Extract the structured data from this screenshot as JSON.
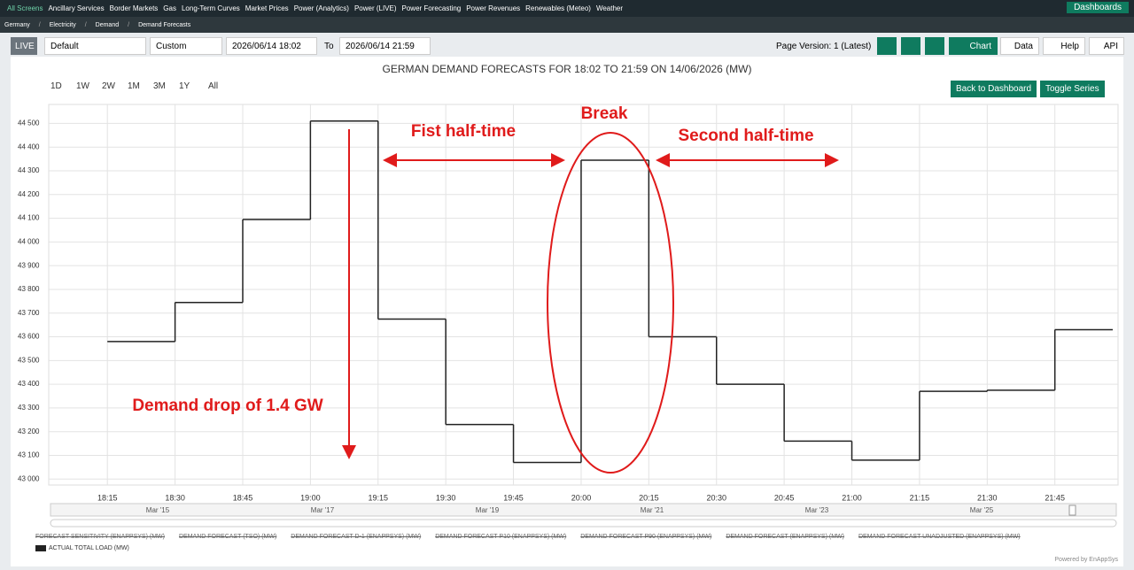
{
  "nav": {
    "menu": [
      "All Screens",
      "Ancillary Services",
      "Border Markets",
      "Gas",
      "Long-Term Curves",
      "Market Prices",
      "Power (Analytics)",
      "Power (LIVE)",
      "Power Forecasting",
      "Power Revenues",
      "Renewables (Meteo)",
      "Weather"
    ],
    "dashboards": "Dashboards"
  },
  "breadcrumb": [
    "Germany",
    "Electricity",
    "Demand",
    "Demand Forecasts"
  ],
  "toolbar": {
    "live": "LIVE",
    "preset": "Default",
    "range_mode": "Custom",
    "from": "2026/06/14 18:02",
    "to_label": "To",
    "to": "2026/06/14 21:59",
    "page_version": "Page Version: 1 (Latest)",
    "chart": "Chart",
    "data": "Data",
    "help": "Help",
    "api": "API"
  },
  "range_buttons": [
    "1D",
    "1W",
    "2W",
    "1M",
    "3M",
    "1Y",
    "All"
  ],
  "actions": {
    "back": "Back to Dashboard",
    "toggle": "Toggle Series"
  },
  "chart_data": {
    "type": "step",
    "title": "GERMAN DEMAND FORECASTS FOR 18:02 TO 21:59 ON 14/06/2026 (MW)",
    "xlim": [
      "18:02",
      "21:59"
    ],
    "xticks": [
      "18:15",
      "18:30",
      "18:45",
      "19:00",
      "19:15",
      "19:30",
      "19:45",
      "20:00",
      "20:15",
      "20:30",
      "20:45",
      "21:00",
      "21:15",
      "21:30",
      "21:45"
    ],
    "ylim": [
      42975,
      44580
    ],
    "yticks": [
      {
        "value": 43000,
        "label": "43 000"
      },
      {
        "value": 43100,
        "label": "43 100"
      },
      {
        "value": 43200,
        "label": "43 200"
      },
      {
        "value": 43300,
        "label": "43 300"
      },
      {
        "value": 43400,
        "label": "43 400"
      },
      {
        "value": 43500,
        "label": "43 500"
      },
      {
        "value": 43600,
        "label": "43 600"
      },
      {
        "value": 43700,
        "label": "43 700"
      },
      {
        "value": 43800,
        "label": "43 800"
      },
      {
        "value": 43900,
        "label": "43 900"
      },
      {
        "value": 44000,
        "label": "44 000"
      },
      {
        "value": 44100,
        "label": "44 100"
      },
      {
        "value": 44200,
        "label": "44 200"
      },
      {
        "value": 44300,
        "label": "44 300"
      },
      {
        "value": 44400,
        "label": "44 400"
      },
      {
        "value": 44500,
        "label": "44 500"
      }
    ],
    "grid": true,
    "series": [
      {
        "name": "ACTUAL TOTAL LOAD (MW)",
        "color": "#222222",
        "x": [
          "18:15",
          "18:30",
          "18:45",
          "19:00",
          "19:15",
          "19:30",
          "19:45",
          "20:00",
          "20:15",
          "20:30",
          "20:45",
          "21:00",
          "21:15",
          "21:30",
          "21:45"
        ],
        "values": [
          43580,
          43745,
          44095,
          44510,
          43675,
          43230,
          43070,
          44345,
          43600,
          43400,
          43160,
          43080,
          43370,
          43375,
          43630
        ]
      }
    ],
    "hidden_series": [
      "FORECAST SENSITIVITY (ENAPPSYS) (MW)",
      "DEMAND FORECAST (TSO) (MW)",
      "DEMAND FORECAST D-1 (ENAPPSYS) (MW)",
      "DEMAND FORECAST P10 (ENAPPSYS) (MW)",
      "DEMAND FORECAST P90 (ENAPPSYS) (MW)",
      "DEMAND FORECAST (ENAPPSYS) (MW)",
      "DEMAND FORECAST UNADJUSTED (ENAPPSYS) (MW)"
    ],
    "annotations": {
      "first": "Fist half-time",
      "break": "Break",
      "second": "Second half-time",
      "drop": "Demand drop of 1.4 GW"
    },
    "navigator_labels": [
      "Mar '15",
      "Mar '17",
      "Mar '19",
      "Mar '21",
      "Mar '23",
      "Mar '25"
    ],
    "credit": "Powered by EnAppSys"
  }
}
